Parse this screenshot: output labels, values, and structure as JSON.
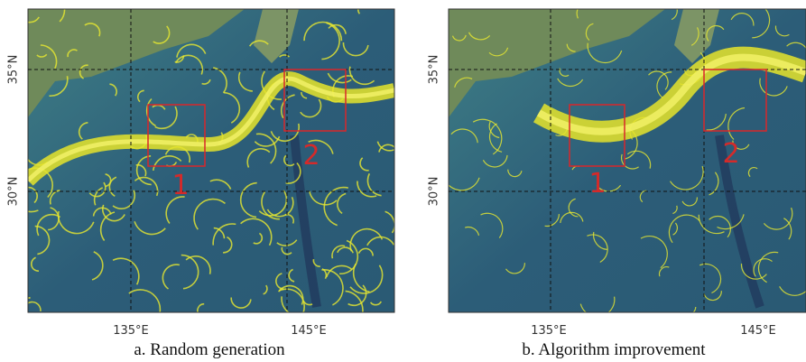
{
  "panels": [
    {
      "caption": "a. Random generation",
      "x_labels": [
        "135°E",
        "145°E"
      ],
      "y_labels": [
        "35°N",
        "30°N"
      ],
      "regions": [
        "1",
        "2"
      ]
    },
    {
      "caption": "b. Algorithm improvement",
      "x_labels": [
        "135°E",
        "145°E"
      ],
      "y_labels": [
        "35°N",
        "30°N"
      ],
      "regions": [
        "1",
        "2"
      ]
    }
  ]
}
